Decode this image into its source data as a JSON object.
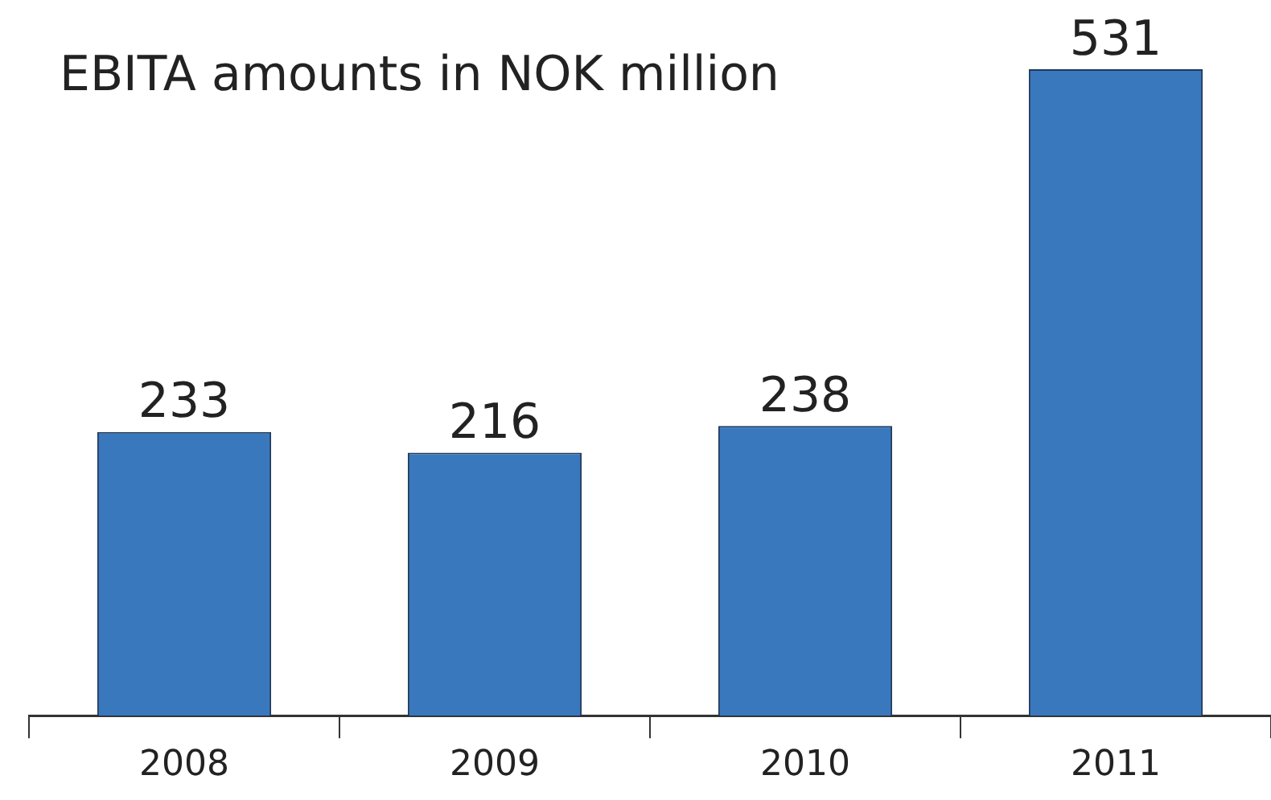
{
  "chart_data": {
    "type": "bar",
    "title": "EBITA amounts in NOK million",
    "categories": [
      "2008",
      "2009",
      "2010",
      "2011"
    ],
    "values": [
      233,
      216,
      238,
      531
    ],
    "color": "#3a78bd",
    "data_labels": true,
    "grid": false,
    "legend": false
  }
}
